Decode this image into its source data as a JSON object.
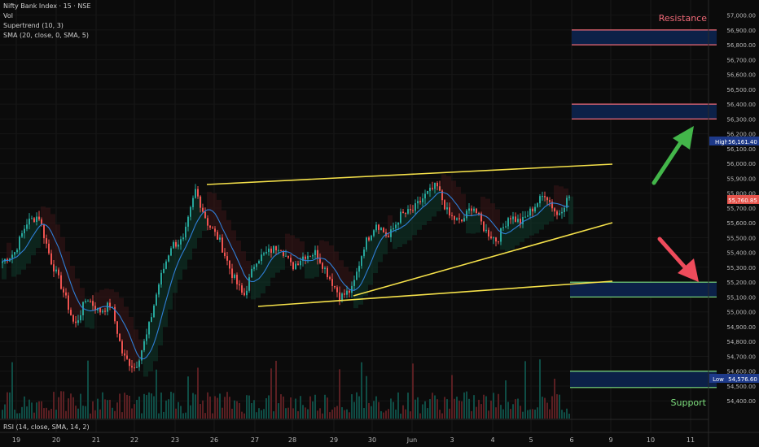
{
  "header": {
    "symbol_title": "Nifty Bank Index · 15 · NSE",
    "indicators": [
      "Vol",
      "Supertrend (10, 3)",
      "SMA (20, close, 0, SMA, 5)"
    ]
  },
  "rsi_label": "RSI (14, close, SMA, 14, 2)",
  "price_axis": {
    "ticks": [
      "57,000.00",
      "56,900.00",
      "56,800.00",
      "56,700.00",
      "56,600.00",
      "56,500.00",
      "56,400.00",
      "56,300.00",
      "56,200.00",
      "56,100.00",
      "56,000.00",
      "55,900.00",
      "55,800.00",
      "55,700.00",
      "55,600.00",
      "55,500.00",
      "55,400.00",
      "55,300.00",
      "55,200.00",
      "55,100.00",
      "55,000.00",
      "54,900.00",
      "54,800.00",
      "54,700.00",
      "54,600.00",
      "54,500.00",
      "54,400.00"
    ],
    "high_label": "High",
    "high_value": "56,161.40",
    "current_value": "55,760.85",
    "low_label": "Low",
    "low_value": "54,576.60"
  },
  "time_axis": {
    "labels": [
      "19",
      "20",
      "21",
      "22",
      "23",
      "26",
      "27",
      "28",
      "29",
      "30",
      "Jun",
      "3",
      "4",
      "5",
      "6",
      "9",
      "10",
      "11"
    ]
  },
  "annotations": {
    "resistance_text": "Resistance",
    "support_text": "Support"
  },
  "colors": {
    "background": "#0b0b0b",
    "up_candle": "#26a69a",
    "down_candle": "#ef5350",
    "sma": "#2f7fd8",
    "trendline": "#f5e14a",
    "resistance": "#f06a78",
    "support": "#7ee07e",
    "zone_fill": "#0c2148",
    "arrow_up": "#43b64a",
    "arrow_down": "#ef4b5b"
  },
  "chart_data": {
    "type": "candlestick",
    "instrument": "Nifty Bank Index",
    "timeframe": "15",
    "exchange": "NSE",
    "ylim": [
      54330,
      57080
    ],
    "price_ticks": [
      57000,
      56900,
      56800,
      56700,
      56600,
      56500,
      56400,
      56300,
      56200,
      56100,
      56000,
      55900,
      55800,
      55700,
      55600,
      55500,
      55400,
      55300,
      55200,
      55100,
      55000,
      54900,
      54800,
      54700,
      54600,
      54500,
      54400
    ],
    "x_labels": [
      "19",
      "20",
      "21",
      "22",
      "23",
      "26",
      "27",
      "28",
      "29",
      "30",
      "Jun",
      "3",
      "4",
      "5",
      "6",
      "9",
      "10",
      "11"
    ],
    "price_path": [
      55340,
      55400,
      55600,
      55650,
      55350,
      55150,
      54900,
      55100,
      55000,
      55050,
      54700,
      54620,
      54850,
      55200,
      55450,
      55480,
      55820,
      55600,
      55480,
      55260,
      55100,
      55350,
      55400,
      55450,
      55300,
      55380,
      55400,
      55250,
      55100,
      55150,
      55450,
      55600,
      55500,
      55650,
      55680,
      55780,
      55850,
      55650,
      55600,
      55720,
      55550,
      55480,
      55650,
      55600,
      55700,
      55800,
      55650,
      55780
    ],
    "high": 56161.4,
    "low": 54576.6,
    "last": 55760.85,
    "zones": [
      {
        "kind": "resistance",
        "from": 56800,
        "to": 56900
      },
      {
        "kind": "resistance",
        "from": 56300,
        "to": 56400
      },
      {
        "kind": "support",
        "from": 55100,
        "to": 55200
      },
      {
        "kind": "support",
        "from": 54490,
        "to": 54600
      }
    ]
  }
}
